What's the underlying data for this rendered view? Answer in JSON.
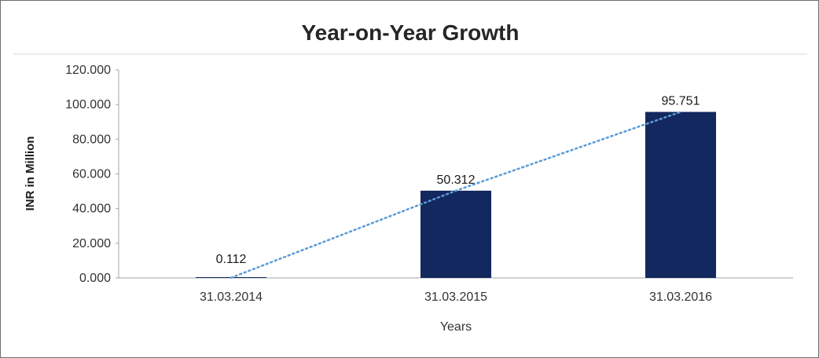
{
  "chart_data": {
    "type": "bar",
    "title": "Year-on-Year Growth",
    "xlabel": "Years",
    "ylabel": "INR in Million",
    "categories": [
      "31.03.2014",
      "31.03.2015",
      "31.03.2016"
    ],
    "values": [
      0.112,
      50.312,
      95.751
    ],
    "value_labels": [
      "0.112",
      "50.312",
      "95.751"
    ],
    "ylim": [
      0,
      120
    ],
    "ytick_values": [
      0,
      20,
      40,
      60,
      80,
      100,
      120
    ],
    "ytick_labels": [
      "0.000",
      "20.000",
      "40.000",
      "60.000",
      "80.000",
      "100.000",
      "120.000"
    ],
    "grid": false,
    "legend": "none",
    "trendline": {
      "style": "dotted",
      "through_values": [
        0.112,
        50.312,
        95.751
      ]
    }
  },
  "colors": {
    "bar": "#12285E",
    "trend_line": "#5B9BD5",
    "axis": "#A6A6A6",
    "divider": "#D9D9D9",
    "frame_border": "#6E6E6E"
  }
}
